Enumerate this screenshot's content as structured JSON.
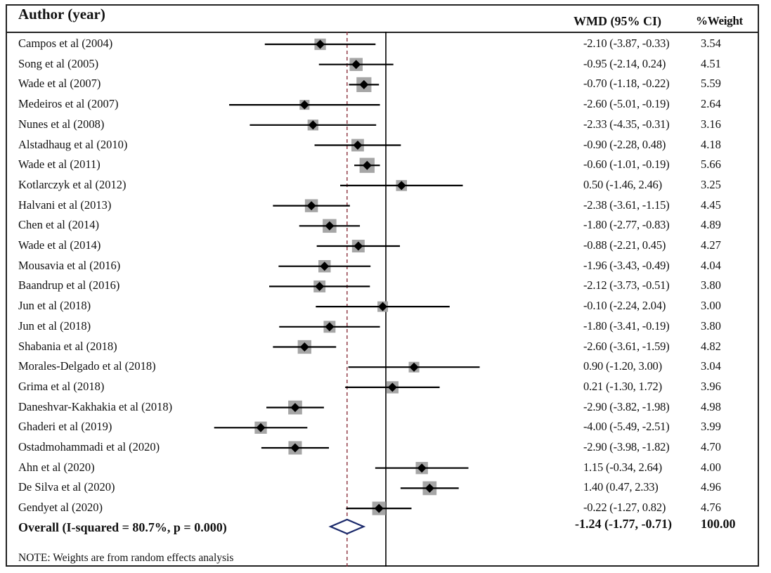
{
  "chart_data": {
    "type": "forest",
    "header": {
      "study": "Author (year)",
      "effect": "WMD (95% CI)",
      "weight": "%Weight"
    },
    "studies": [
      {
        "label": "Campos et al (2004)",
        "wmd": -2.1,
        "lo": -3.87,
        "hi": -0.33,
        "ci_text": "-2.10 (-3.87, -0.33)",
        "weight": "3.54"
      },
      {
        "label": "Song et al (2005)",
        "wmd": -0.95,
        "lo": -2.14,
        "hi": 0.24,
        "ci_text": "-0.95 (-2.14, 0.24)",
        "weight": "4.51"
      },
      {
        "label": "Wade et al (2007)",
        "wmd": -0.7,
        "lo": -1.18,
        "hi": -0.22,
        "ci_text": "-0.70 (-1.18, -0.22)",
        "weight": "5.59"
      },
      {
        "label": "Medeiros et al (2007)",
        "wmd": -2.6,
        "lo": -5.01,
        "hi": -0.19,
        "ci_text": "-2.60 (-5.01, -0.19)",
        "weight": "2.64"
      },
      {
        "label": "Nunes et al (2008)",
        "wmd": -2.33,
        "lo": -4.35,
        "hi": -0.31,
        "ci_text": "-2.33 (-4.35, -0.31)",
        "weight": "3.16"
      },
      {
        "label": "Alstadhaug et al (2010)",
        "wmd": -0.9,
        "lo": -2.28,
        "hi": 0.48,
        "ci_text": "-0.90 (-2.28, 0.48)",
        "weight": "4.18"
      },
      {
        "label": "Wade et al (2011)",
        "wmd": -0.6,
        "lo": -1.01,
        "hi": -0.19,
        "ci_text": "-0.60 (-1.01, -0.19)",
        "weight": "5.66"
      },
      {
        "label": "Kotlarczyk et al (2012)",
        "wmd": 0.5,
        "lo": -1.46,
        "hi": 2.46,
        "ci_text": "0.50 (-1.46, 2.46)",
        "weight": "3.25"
      },
      {
        "label": "Halvani et al (2013)",
        "wmd": -2.38,
        "lo": -3.61,
        "hi": -1.15,
        "ci_text": "-2.38 (-3.61, -1.15)",
        "weight": "4.45"
      },
      {
        "label": "Chen et al (2014)",
        "wmd": -1.8,
        "lo": -2.77,
        "hi": -0.83,
        "ci_text": "-1.80 (-2.77, -0.83)",
        "weight": "4.89"
      },
      {
        "label": "Wade et al (2014)",
        "wmd": -0.88,
        "lo": -2.21,
        "hi": 0.45,
        "ci_text": "-0.88 (-2.21, 0.45)",
        "weight": "4.27"
      },
      {
        "label": "Mousavia et al (2016)",
        "wmd": -1.96,
        "lo": -3.43,
        "hi": -0.49,
        "ci_text": "-1.96 (-3.43, -0.49)",
        "weight": "4.04"
      },
      {
        "label": "Baandrup et al (2016)",
        "wmd": -2.12,
        "lo": -3.73,
        "hi": -0.51,
        "ci_text": "-2.12 (-3.73, -0.51)",
        "weight": "3.80"
      },
      {
        "label": "Jun et al (2018)",
        "wmd": -0.1,
        "lo": -2.24,
        "hi": 2.04,
        "ci_text": "-0.10 (-2.24, 2.04)",
        "weight": "3.00"
      },
      {
        "label": "Jun et al (2018)",
        "wmd": -1.8,
        "lo": -3.41,
        "hi": -0.19,
        "ci_text": "-1.80 (-3.41, -0.19)",
        "weight": "3.80"
      },
      {
        "label": "Shabania et al (2018)",
        "wmd": -2.6,
        "lo": -3.61,
        "hi": -1.59,
        "ci_text": "-2.60 (-3.61, -1.59)",
        "weight": "4.82"
      },
      {
        "label": "Morales-Delgado et al (2018)",
        "wmd": 0.9,
        "lo": -1.2,
        "hi": 3.0,
        "ci_text": "0.90 (-1.20, 3.00)",
        "weight": "3.04"
      },
      {
        "label": "Grima et al (2018)",
        "wmd": 0.21,
        "lo": -1.3,
        "hi": 1.72,
        "ci_text": "0.21 (-1.30, 1.72)",
        "weight": "3.96"
      },
      {
        "label": "Daneshvar-Kakhakia et al (2018)",
        "wmd": -2.9,
        "lo": -3.82,
        "hi": -1.98,
        "ci_text": "-2.90 (-3.82, -1.98)",
        "weight": "4.98"
      },
      {
        "label": "Ghaderi et al (2019)",
        "wmd": -4.0,
        "lo": -5.49,
        "hi": -2.51,
        "ci_text": "-4.00 (-5.49, -2.51)",
        "weight": "3.99"
      },
      {
        "label": "Ostadmohammadi et al (2020)",
        "wmd": -2.9,
        "lo": -3.98,
        "hi": -1.82,
        "ci_text": "-2.90 (-3.98, -1.82)",
        "weight": "4.70"
      },
      {
        "label": "Ahn et al (2020)",
        "wmd": 1.15,
        "lo": -0.34,
        "hi": 2.64,
        "ci_text": "1.15 (-0.34, 2.64)",
        "weight": "4.00"
      },
      {
        "label": "De Silva et al (2020)",
        "wmd": 1.4,
        "lo": 0.47,
        "hi": 2.33,
        "ci_text": "1.40 (0.47, 2.33)",
        "weight": "4.96"
      },
      {
        "label": "Gendyet al (2020)",
        "wmd": -0.22,
        "lo": -1.27,
        "hi": 0.82,
        "ci_text": "-0.22 (-1.27, 0.82)",
        "weight": "4.76"
      }
    ],
    "overall": {
      "label": "Overall (I-squared = 80.7%, p = 0.000)",
      "wmd": -1.24,
      "lo": -1.77,
      "hi": -0.71,
      "ci_text": "-1.24 (-1.77, -0.71)",
      "weight": "100.00"
    },
    "null_line": 0,
    "pooled_line": -1.24,
    "x_range": [
      -6.5,
      4.0
    ],
    "note": "NOTE: Weights are from random effects analysis",
    "colors": {
      "point": "#000000",
      "weight_box": "#a6a6a6",
      "pooled_diamond": "#1b2a6b",
      "pooled_line": "#8b2e3a",
      "null_line": "#000000"
    }
  }
}
